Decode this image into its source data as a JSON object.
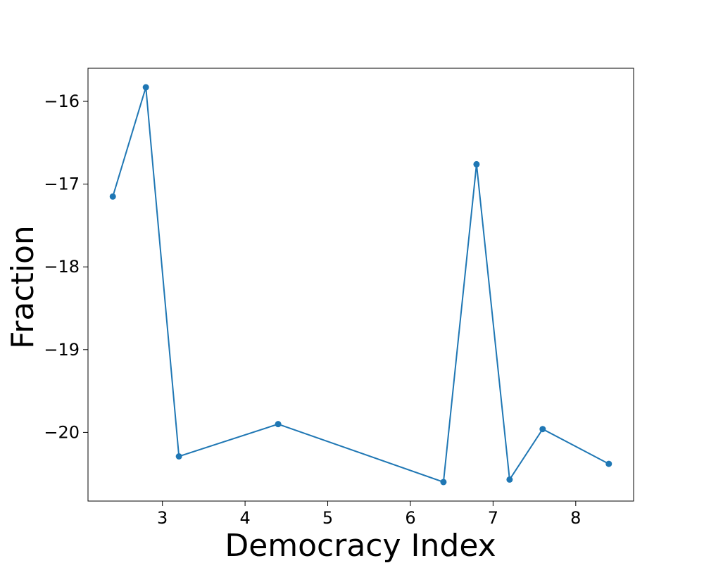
{
  "chart_data": {
    "type": "line",
    "title": "",
    "xlabel": "Democracy Index",
    "ylabel": "Fraction",
    "xlim": [
      2.1,
      8.7
    ],
    "ylim": [
      -20.83,
      -15.6
    ],
    "x_ticks": [
      3,
      4,
      5,
      6,
      7,
      8
    ],
    "y_ticks": [
      -16,
      -17,
      -18,
      -19,
      -20
    ],
    "grid": false,
    "legend": "none",
    "series": [
      {
        "color": "#1f77b4",
        "marker": "circle",
        "x": [
          2.4,
          2.8,
          3.2,
          4.4,
          6.4,
          6.8,
          7.2,
          7.6,
          8.4
        ],
        "y": [
          -17.15,
          -15.83,
          -20.29,
          -19.9,
          -20.6,
          -16.76,
          -20.57,
          -19.96,
          -20.38
        ]
      }
    ]
  }
}
